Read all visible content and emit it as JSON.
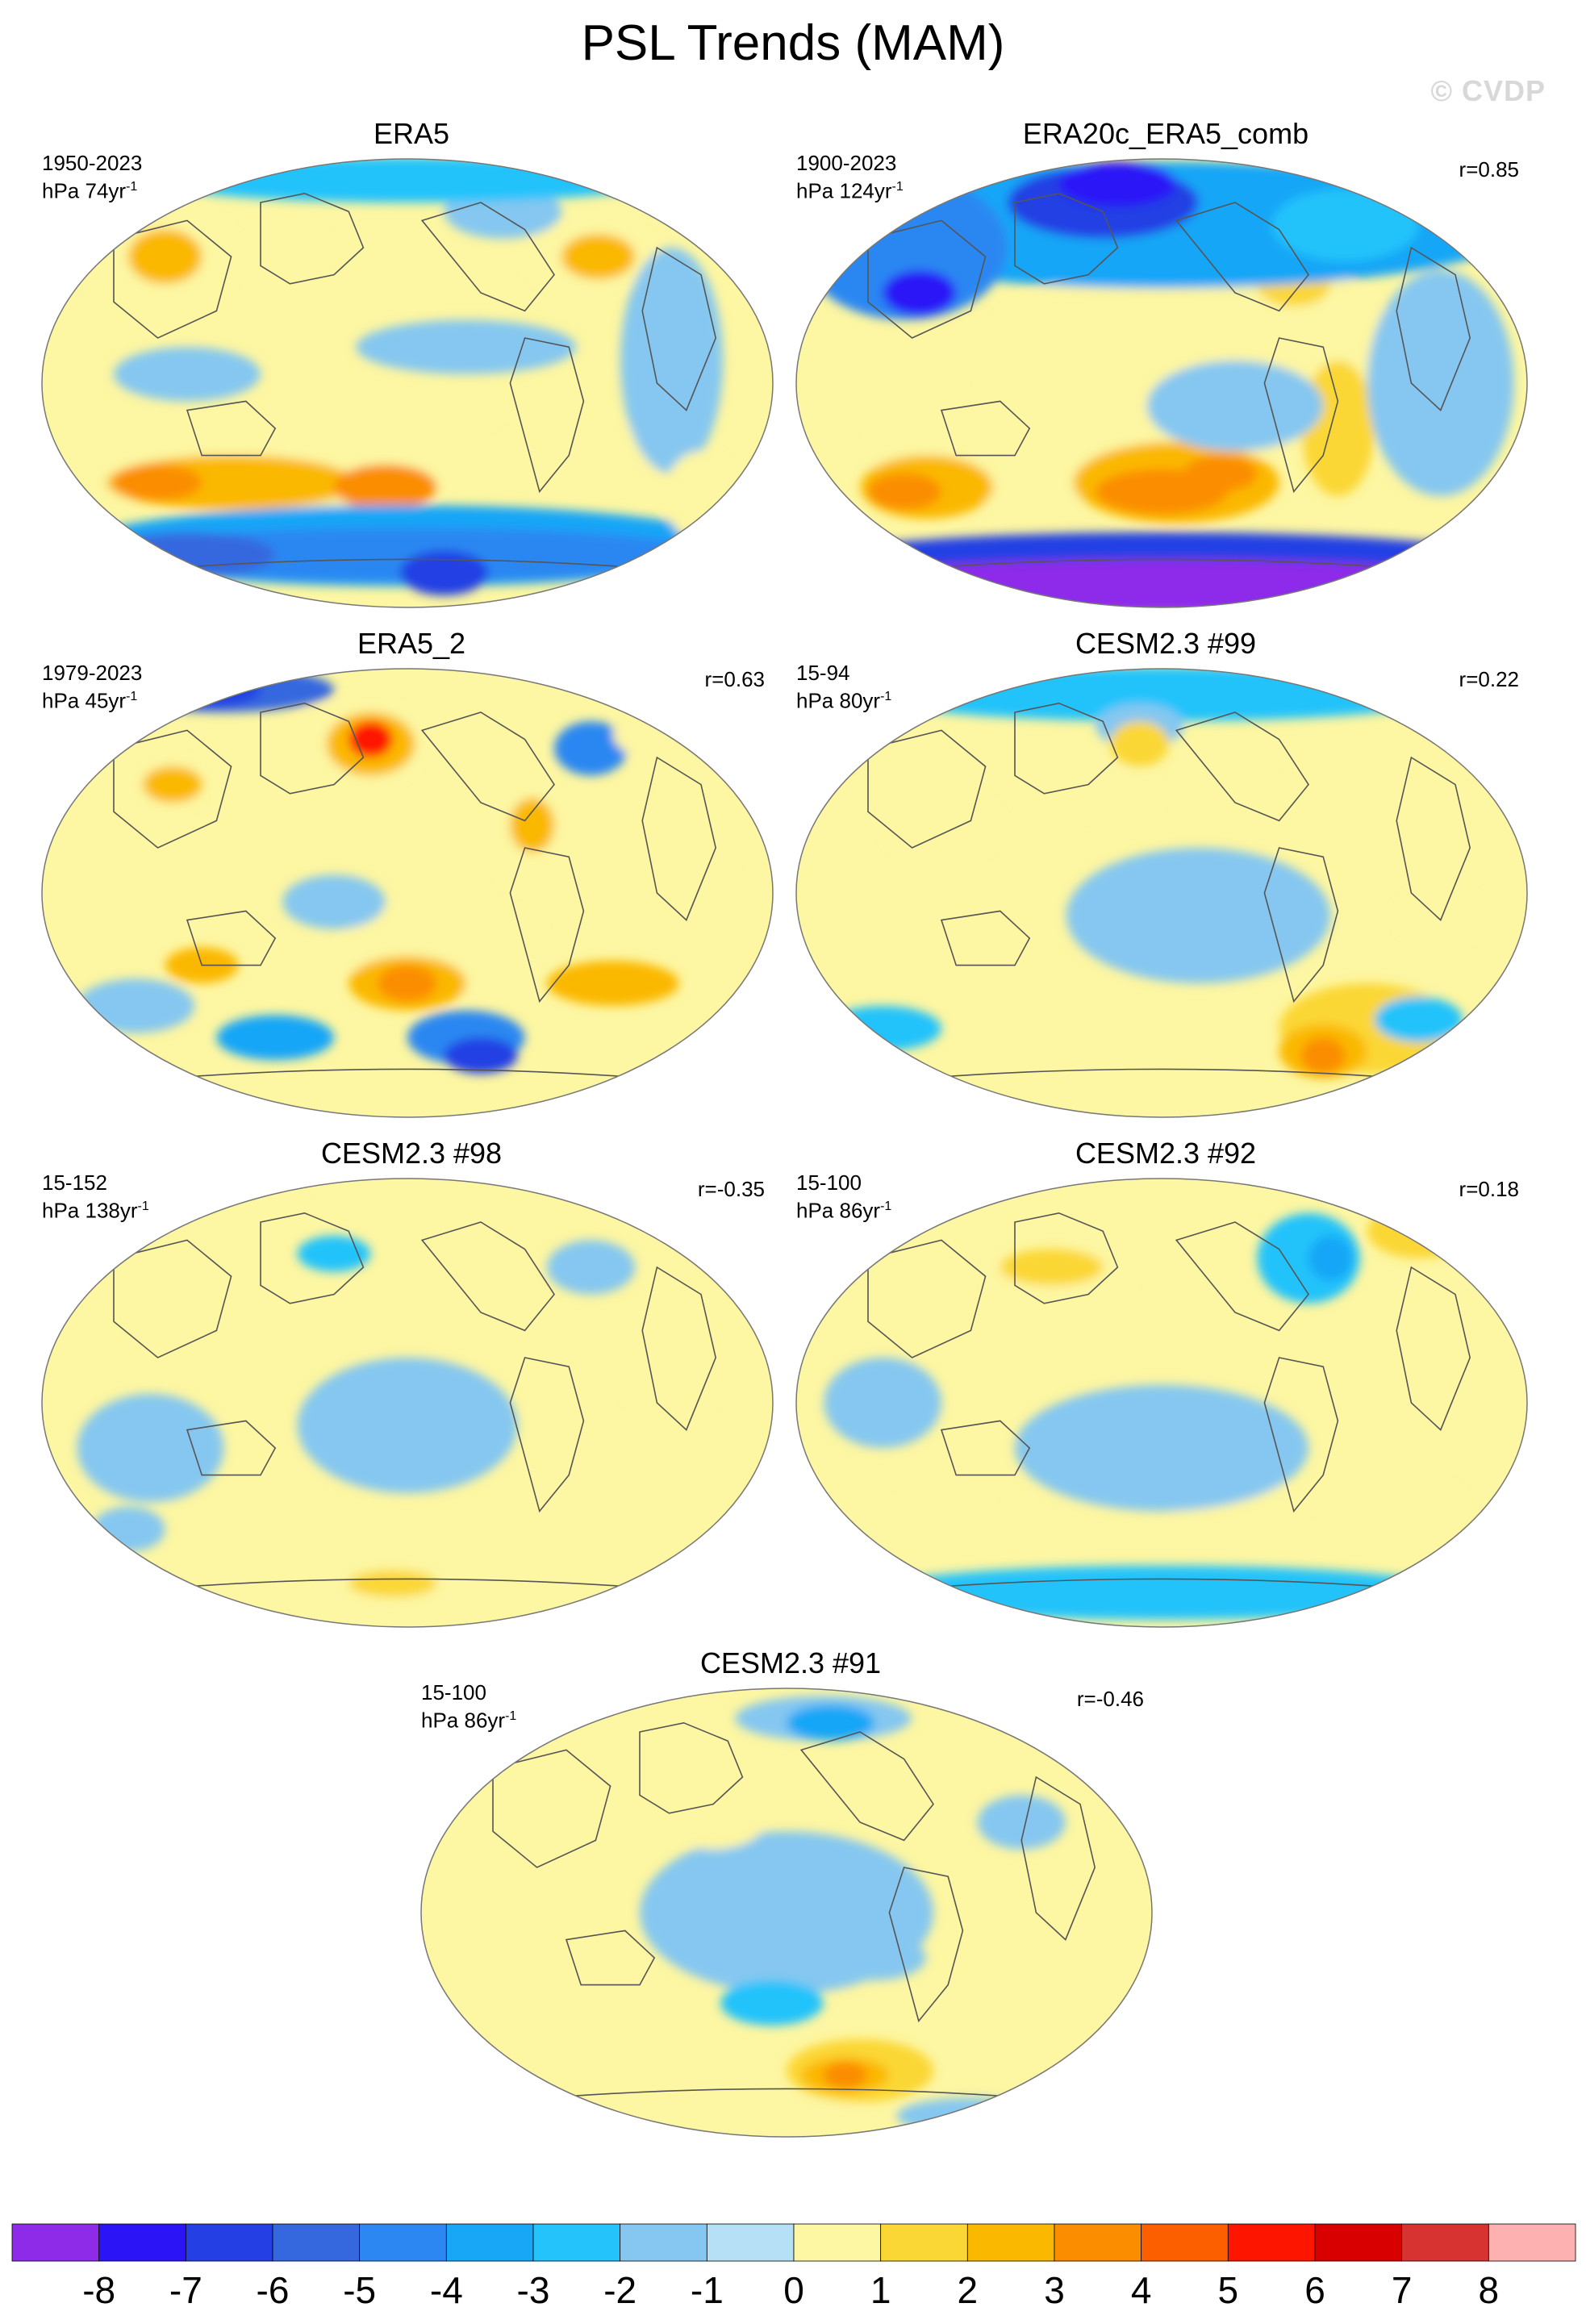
{
  "title": "PSL Trends (MAM)",
  "watermark": "© CVDP",
  "panels": [
    {
      "id": "era5",
      "title": "ERA5",
      "period": "1950-2023",
      "units_prefix": "hPa 74yr",
      "units_exp": "-1",
      "corr": "",
      "blobs": [
        [
          0.16,
          0.22,
          0.11,
          0.12,
          1
        ],
        [
          0.17,
          0.22,
          0.05,
          0.06,
          3
        ],
        [
          0.34,
          0.2,
          0.06,
          0.04,
          1
        ],
        [
          0.75,
          0.22,
          0.09,
          0.08,
          1
        ],
        [
          0.76,
          0.22,
          0.05,
          0.05,
          3
        ],
        [
          0.63,
          0.12,
          0.08,
          0.06,
          -1
        ],
        [
          0.3,
          0.68,
          0.28,
          0.1,
          1
        ],
        [
          0.26,
          0.72,
          0.17,
          0.06,
          3
        ],
        [
          0.16,
          0.72,
          0.06,
          0.04,
          4
        ],
        [
          0.47,
          0.73,
          0.07,
          0.05,
          4
        ],
        [
          0.74,
          0.66,
          0.12,
          0.08,
          1
        ],
        [
          0.5,
          0.86,
          0.45,
          0.09,
          -3
        ],
        [
          0.5,
          0.88,
          0.42,
          0.06,
          -4
        ],
        [
          0.55,
          0.92,
          0.06,
          0.05,
          -6
        ],
        [
          0.2,
          0.88,
          0.12,
          0.05,
          -5
        ],
        [
          0.5,
          0.05,
          0.35,
          0.05,
          -2
        ],
        [
          0.86,
          0.45,
          0.07,
          0.25,
          -1
        ],
        [
          0.2,
          0.48,
          0.1,
          0.06,
          -1
        ],
        [
          0.58,
          0.42,
          0.15,
          0.06,
          -1
        ],
        [
          0.9,
          0.75,
          0.05,
          0.1,
          1
        ]
      ]
    },
    {
      "id": "era20c",
      "title": "ERA20c_ERA5_comb",
      "period": "1900-2023",
      "units_prefix": "hPa 124yr",
      "units_exp": "-1",
      "corr": "r=0.85",
      "blobs": [
        [
          0.55,
          0.45,
          0.3,
          0.22,
          1
        ],
        [
          0.5,
          0.4,
          0.2,
          0.1,
          1
        ],
        [
          0.3,
          0.65,
          0.2,
          0.12,
          1
        ],
        [
          0.18,
          0.73,
          0.09,
          0.07,
          3
        ],
        [
          0.15,
          0.74,
          0.05,
          0.04,
          4
        ],
        [
          0.52,
          0.72,
          0.14,
          0.09,
          3
        ],
        [
          0.5,
          0.74,
          0.09,
          0.05,
          4
        ],
        [
          0.58,
          0.7,
          0.05,
          0.04,
          4
        ],
        [
          0.68,
          0.28,
          0.08,
          0.09,
          1
        ],
        [
          0.68,
          0.28,
          0.05,
          0.05,
          2
        ],
        [
          0.74,
          0.6,
          0.05,
          0.15,
          2
        ],
        [
          0.5,
          0.15,
          0.5,
          0.14,
          -3
        ],
        [
          0.15,
          0.2,
          0.14,
          0.16,
          -4
        ],
        [
          0.17,
          0.3,
          0.05,
          0.05,
          -7
        ],
        [
          0.42,
          0.1,
          0.13,
          0.08,
          -6
        ],
        [
          0.44,
          0.06,
          0.08,
          0.05,
          -7
        ],
        [
          0.5,
          0.9,
          0.5,
          0.07,
          -6
        ],
        [
          0.5,
          0.95,
          0.5,
          0.06,
          -8
        ],
        [
          0.75,
          0.15,
          0.1,
          0.08,
          -2
        ],
        [
          0.88,
          0.5,
          0.1,
          0.25,
          -1
        ],
        [
          0.6,
          0.55,
          0.12,
          0.1,
          -1
        ]
      ]
    },
    {
      "id": "era5_2",
      "title": "ERA5_2",
      "period": "1979-2023",
      "units_prefix": "hPa 45yr",
      "units_exp": "-1",
      "corr": "r=0.63",
      "blobs": [
        [
          0.43,
          0.17,
          0.09,
          0.1,
          1
        ],
        [
          0.45,
          0.17,
          0.06,
          0.07,
          3
        ],
        [
          0.45,
          0.16,
          0.03,
          0.04,
          6
        ],
        [
          0.15,
          0.26,
          0.07,
          0.07,
          1
        ],
        [
          0.18,
          0.26,
          0.04,
          0.04,
          3
        ],
        [
          0.66,
          0.35,
          0.05,
          0.14,
          1
        ],
        [
          0.67,
          0.35,
          0.03,
          0.06,
          3
        ],
        [
          0.55,
          0.62,
          0.14,
          0.11,
          1
        ],
        [
          0.5,
          0.7,
          0.08,
          0.06,
          3
        ],
        [
          0.5,
          0.7,
          0.04,
          0.04,
          4
        ],
        [
          0.78,
          0.7,
          0.09,
          0.05,
          3
        ],
        [
          0.22,
          0.66,
          0.05,
          0.04,
          3
        ],
        [
          0.9,
          0.35,
          0.06,
          0.12,
          1
        ],
        [
          0.4,
          0.52,
          0.07,
          0.06,
          -1
        ],
        [
          0.25,
          0.05,
          0.15,
          0.05,
          -5
        ],
        [
          0.22,
          0.05,
          0.08,
          0.04,
          -6
        ],
        [
          0.75,
          0.18,
          0.05,
          0.06,
          -4
        ],
        [
          0.86,
          0.15,
          0.08,
          0.06,
          1
        ],
        [
          0.58,
          0.82,
          0.08,
          0.06,
          -4
        ],
        [
          0.6,
          0.86,
          0.05,
          0.04,
          -6
        ],
        [
          0.32,
          0.82,
          0.08,
          0.05,
          -3
        ],
        [
          0.13,
          0.75,
          0.08,
          0.06,
          -1
        ]
      ]
    },
    {
      "id": "cesm99",
      "title": "CESM2.3 #99",
      "period": "15-94",
      "units_prefix": "hPa 80yr",
      "units_exp": "-1",
      "corr": "r=0.22",
      "blobs": [
        [
          0.5,
          0.06,
          0.4,
          0.06,
          -2
        ],
        [
          0.47,
          0.13,
          0.06,
          0.05,
          -1
        ],
        [
          0.47,
          0.17,
          0.04,
          0.05,
          2
        ],
        [
          0.4,
          0.28,
          0.1,
          0.06,
          1
        ],
        [
          0.75,
          0.27,
          0.08,
          0.05,
          1
        ],
        [
          0.2,
          0.35,
          0.08,
          0.08,
          1
        ],
        [
          0.78,
          0.8,
          0.12,
          0.1,
          2
        ],
        [
          0.72,
          0.85,
          0.06,
          0.06,
          3
        ],
        [
          0.72,
          0.86,
          0.03,
          0.04,
          4
        ],
        [
          0.88,
          0.55,
          0.06,
          0.06,
          1
        ],
        [
          0.12,
          0.8,
          0.08,
          0.05,
          -2
        ],
        [
          0.85,
          0.78,
          0.06,
          0.05,
          -2
        ],
        [
          0.55,
          0.55,
          0.18,
          0.15,
          -1
        ]
      ]
    },
    {
      "id": "cesm98",
      "title": "CESM2.3 #98",
      "period": "15-152",
      "units_prefix": "hPa 138yr",
      "units_exp": "-1",
      "corr": "r=-0.35",
      "blobs": [
        [
          0.25,
          0.08,
          0.12,
          0.05,
          1
        ],
        [
          0.4,
          0.17,
          0.05,
          0.04,
          -2
        ],
        [
          0.75,
          0.2,
          0.06,
          0.06,
          -1
        ],
        [
          0.5,
          0.55,
          0.15,
          0.15,
          -1
        ],
        [
          0.15,
          0.6,
          0.1,
          0.12,
          -1
        ],
        [
          0.5,
          0.88,
          0.35,
          0.06,
          1
        ],
        [
          0.48,
          0.9,
          0.06,
          0.03,
          2
        ],
        [
          0.86,
          0.45,
          0.07,
          0.07,
          1
        ],
        [
          0.12,
          0.78,
          0.05,
          0.05,
          -1
        ]
      ]
    },
    {
      "id": "cesm92",
      "title": "CESM2.3 #92",
      "period": "15-100",
      "units_prefix": "hPa 86yr",
      "units_exp": "-1",
      "corr": "r=0.18",
      "blobs": [
        [
          0.36,
          0.22,
          0.1,
          0.06,
          1
        ],
        [
          0.35,
          0.2,
          0.07,
          0.04,
          2
        ],
        [
          0.7,
          0.18,
          0.07,
          0.1,
          -2
        ],
        [
          0.73,
          0.18,
          0.03,
          0.05,
          -3
        ],
        [
          0.85,
          0.12,
          0.07,
          0.06,
          2
        ],
        [
          0.2,
          0.75,
          0.07,
          0.05,
          1
        ],
        [
          0.6,
          0.72,
          0.1,
          0.05,
          1
        ],
        [
          0.85,
          0.72,
          0.06,
          0.05,
          1
        ],
        [
          0.5,
          0.92,
          0.4,
          0.06,
          -2
        ],
        [
          0.5,
          0.6,
          0.2,
          0.14,
          -1
        ],
        [
          0.12,
          0.5,
          0.08,
          0.1,
          -1
        ]
      ]
    },
    {
      "id": "cesm91",
      "title": "CESM2.3 #91",
      "period": "15-100",
      "units_prefix": "hPa 86yr",
      "units_exp": "-1",
      "corr": "r=-0.46",
      "blobs": [
        [
          0.55,
          0.07,
          0.12,
          0.05,
          -1
        ],
        [
          0.56,
          0.08,
          0.06,
          0.04,
          -3
        ],
        [
          0.5,
          0.5,
          0.2,
          0.18,
          -1
        ],
        [
          0.48,
          0.7,
          0.07,
          0.05,
          -2
        ],
        [
          0.6,
          0.85,
          0.1,
          0.07,
          2
        ],
        [
          0.58,
          0.86,
          0.06,
          0.04,
          3
        ],
        [
          0.58,
          0.86,
          0.03,
          0.03,
          4
        ],
        [
          0.62,
          0.6,
          0.07,
          0.05,
          -1
        ],
        [
          0.36,
          0.95,
          0.25,
          0.05,
          1
        ],
        [
          0.4,
          0.3,
          0.07,
          0.06,
          1
        ],
        [
          0.75,
          0.95,
          0.1,
          0.04,
          -1
        ],
        [
          0.82,
          0.3,
          0.06,
          0.06,
          -1
        ]
      ]
    }
  ],
  "colorbar": {
    "colors": [
      "#8e2be9",
      "#2b15f7",
      "#243fe4",
      "#3567df",
      "#2c87f2",
      "#18a6f7",
      "#24c3fb",
      "#85c7f0",
      "#b6e0f5",
      "#fdf6a2",
      "#fbd735",
      "#fbb800",
      "#fb8d00",
      "#fb5f00",
      "#fe1500",
      "#d80000",
      "#d73330",
      "#fdb1b1"
    ],
    "labels": [
      "-8",
      "-7",
      "-6",
      "-5",
      "-4",
      "-3",
      "-2",
      "-1",
      "0",
      "1",
      "2",
      "3",
      "4",
      "5",
      "6",
      "7",
      "8"
    ]
  }
}
